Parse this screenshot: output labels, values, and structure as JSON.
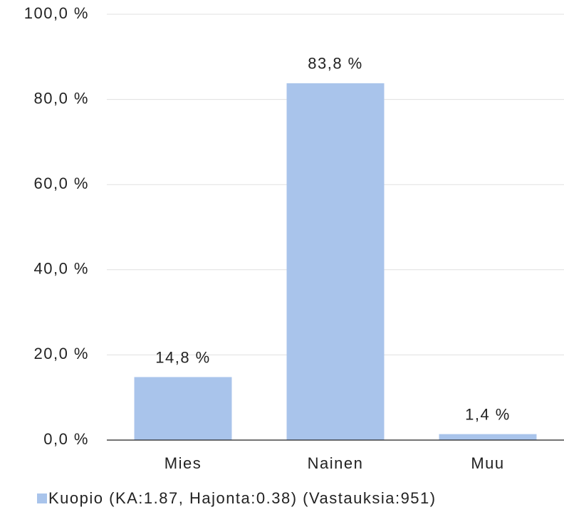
{
  "chart_data": {
    "type": "bar",
    "categories": [
      "Mies",
      "Nainen",
      "Muu"
    ],
    "series": [
      {
        "name": "Kuopio (KA:1.87, Hajonta:0.38) (Vastauksia:951)",
        "color": "#a9c4eb",
        "values": [
          14.8,
          83.8,
          1.4
        ],
        "value_labels": [
          "14,8 %",
          "83,8 %",
          "1,4 %"
        ]
      }
    ],
    "ylim": [
      0,
      100
    ],
    "yticks": [
      {
        "value": 0,
        "label": "0,0 %"
      },
      {
        "value": 20,
        "label": "20,0 %"
      },
      {
        "value": 40,
        "label": "40,0 %"
      },
      {
        "value": 60,
        "label": "60,0 %"
      },
      {
        "value": 80,
        "label": "80,0 %"
      },
      {
        "value": 100,
        "label": "100,0 %"
      }
    ],
    "grid": true,
    "legend": "bottom"
  }
}
